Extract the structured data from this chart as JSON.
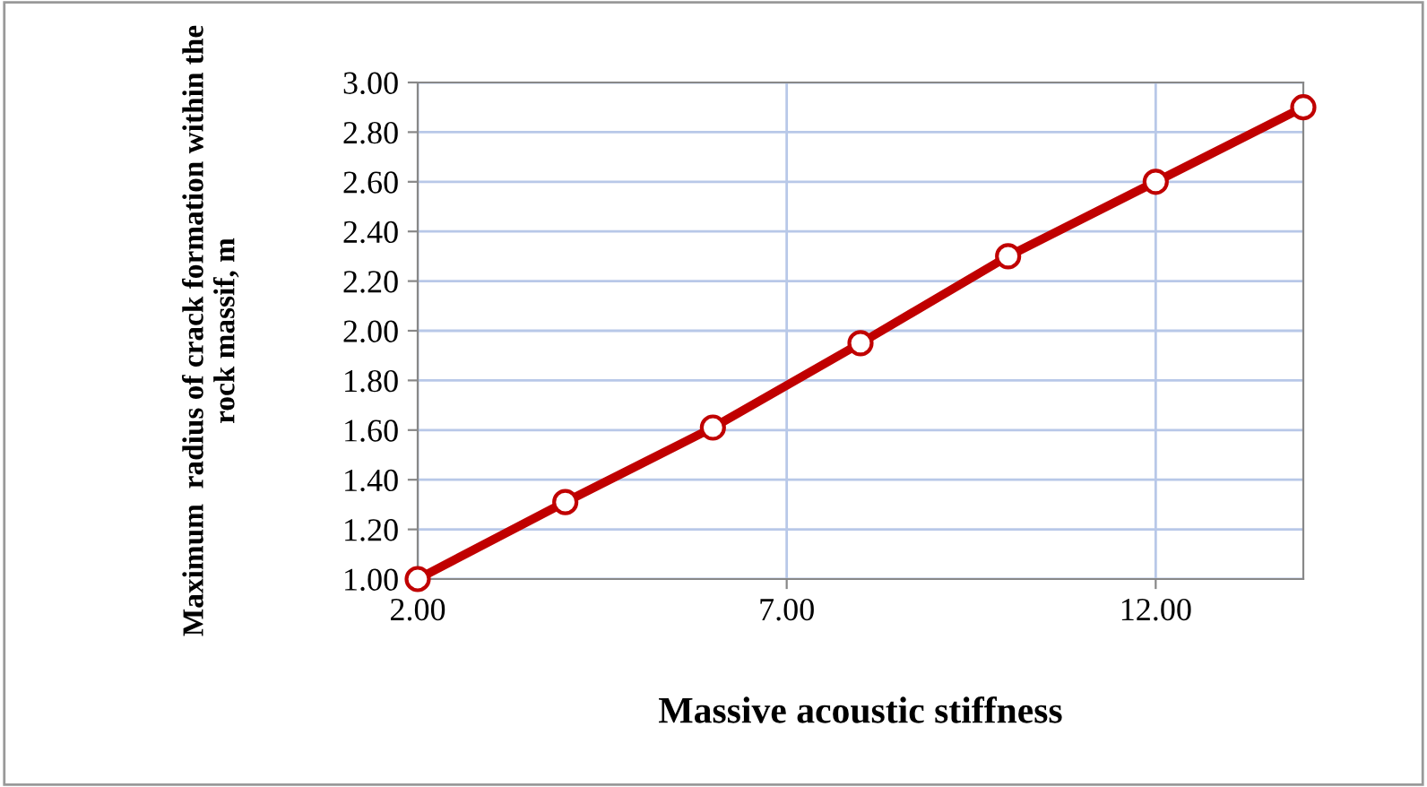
{
  "chart_data": {
    "type": "line",
    "xlabel": "Massive acoustic stiffness",
    "ylabel": "Maximum  radius of crack formation within the rock massif, m",
    "x": [
      2,
      4,
      6,
      8,
      10,
      12,
      14
    ],
    "series": [
      {
        "color": "#c00000",
        "values": [
          1.0,
          1.31,
          1.61,
          1.95,
          2.3,
          2.6,
          2.9
        ]
      }
    ],
    "xlim": [
      2,
      14
    ],
    "xticks": [
      {
        "value": 2,
        "label": "2.00"
      },
      {
        "value": 7,
        "label": "7.00"
      },
      {
        "value": 12,
        "label": "12.00"
      }
    ],
    "ylim": [
      1,
      3
    ],
    "yticks": [
      {
        "value": 1,
        "label": "1.00"
      },
      {
        "value": 1.2,
        "label": "1.20"
      },
      {
        "value": 1.4,
        "label": "1.40"
      },
      {
        "value": 1.6,
        "label": "1.60"
      },
      {
        "value": 1.8,
        "label": "1.80"
      },
      {
        "value": 2,
        "label": "2.00"
      },
      {
        "value": 2.2,
        "label": "2.20"
      },
      {
        "value": 2.4,
        "label": "2.40"
      },
      {
        "value": 2.6,
        "label": "2.60"
      },
      {
        "value": 2.8,
        "label": "2.80"
      },
      {
        "value": 3,
        "label": "3.00"
      }
    ],
    "grid": true,
    "marker": "circle",
    "line_style": "solid"
  }
}
